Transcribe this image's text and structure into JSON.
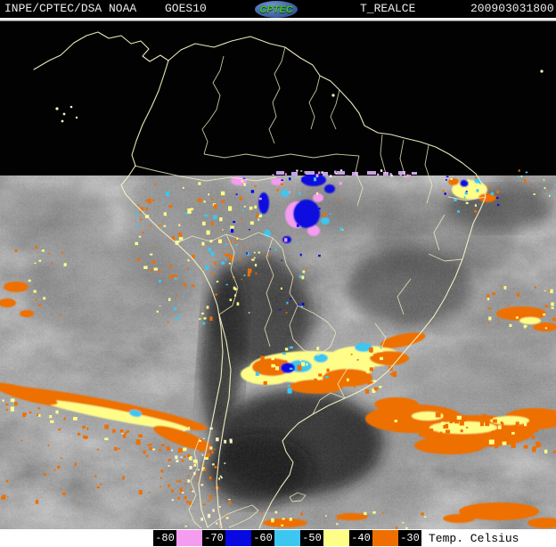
{
  "header": {
    "agency": "INPE/CPTEC/DSA",
    "network": "NOAA",
    "satellite": "GOES10",
    "logo_text": "CPTEC",
    "product": "T_REALCE",
    "timestamp": "200903031800"
  },
  "legend": {
    "title": "Temp. Celsius",
    "labels": [
      "-80",
      "-70",
      "-60",
      "-50",
      "-40",
      "-30"
    ],
    "swatches": [
      "#f49cf0",
      "#0808e0",
      "#3cc6f0",
      "#fdfd87",
      "#ee6f00"
    ]
  },
  "map": {
    "colors": {
      "border": "#f7f2c4",
      "no_data": "#020202",
      "cloud_base": "#5a5a5a",
      "enh_pink": "#f49cf0",
      "enh_blue": "#0808e0",
      "enh_cyan": "#3cc6f0",
      "enh_yellow": "#fdfd87",
      "enh_orange": "#ee6f00",
      "enh_lavender": "#c8a2e8"
    }
  }
}
